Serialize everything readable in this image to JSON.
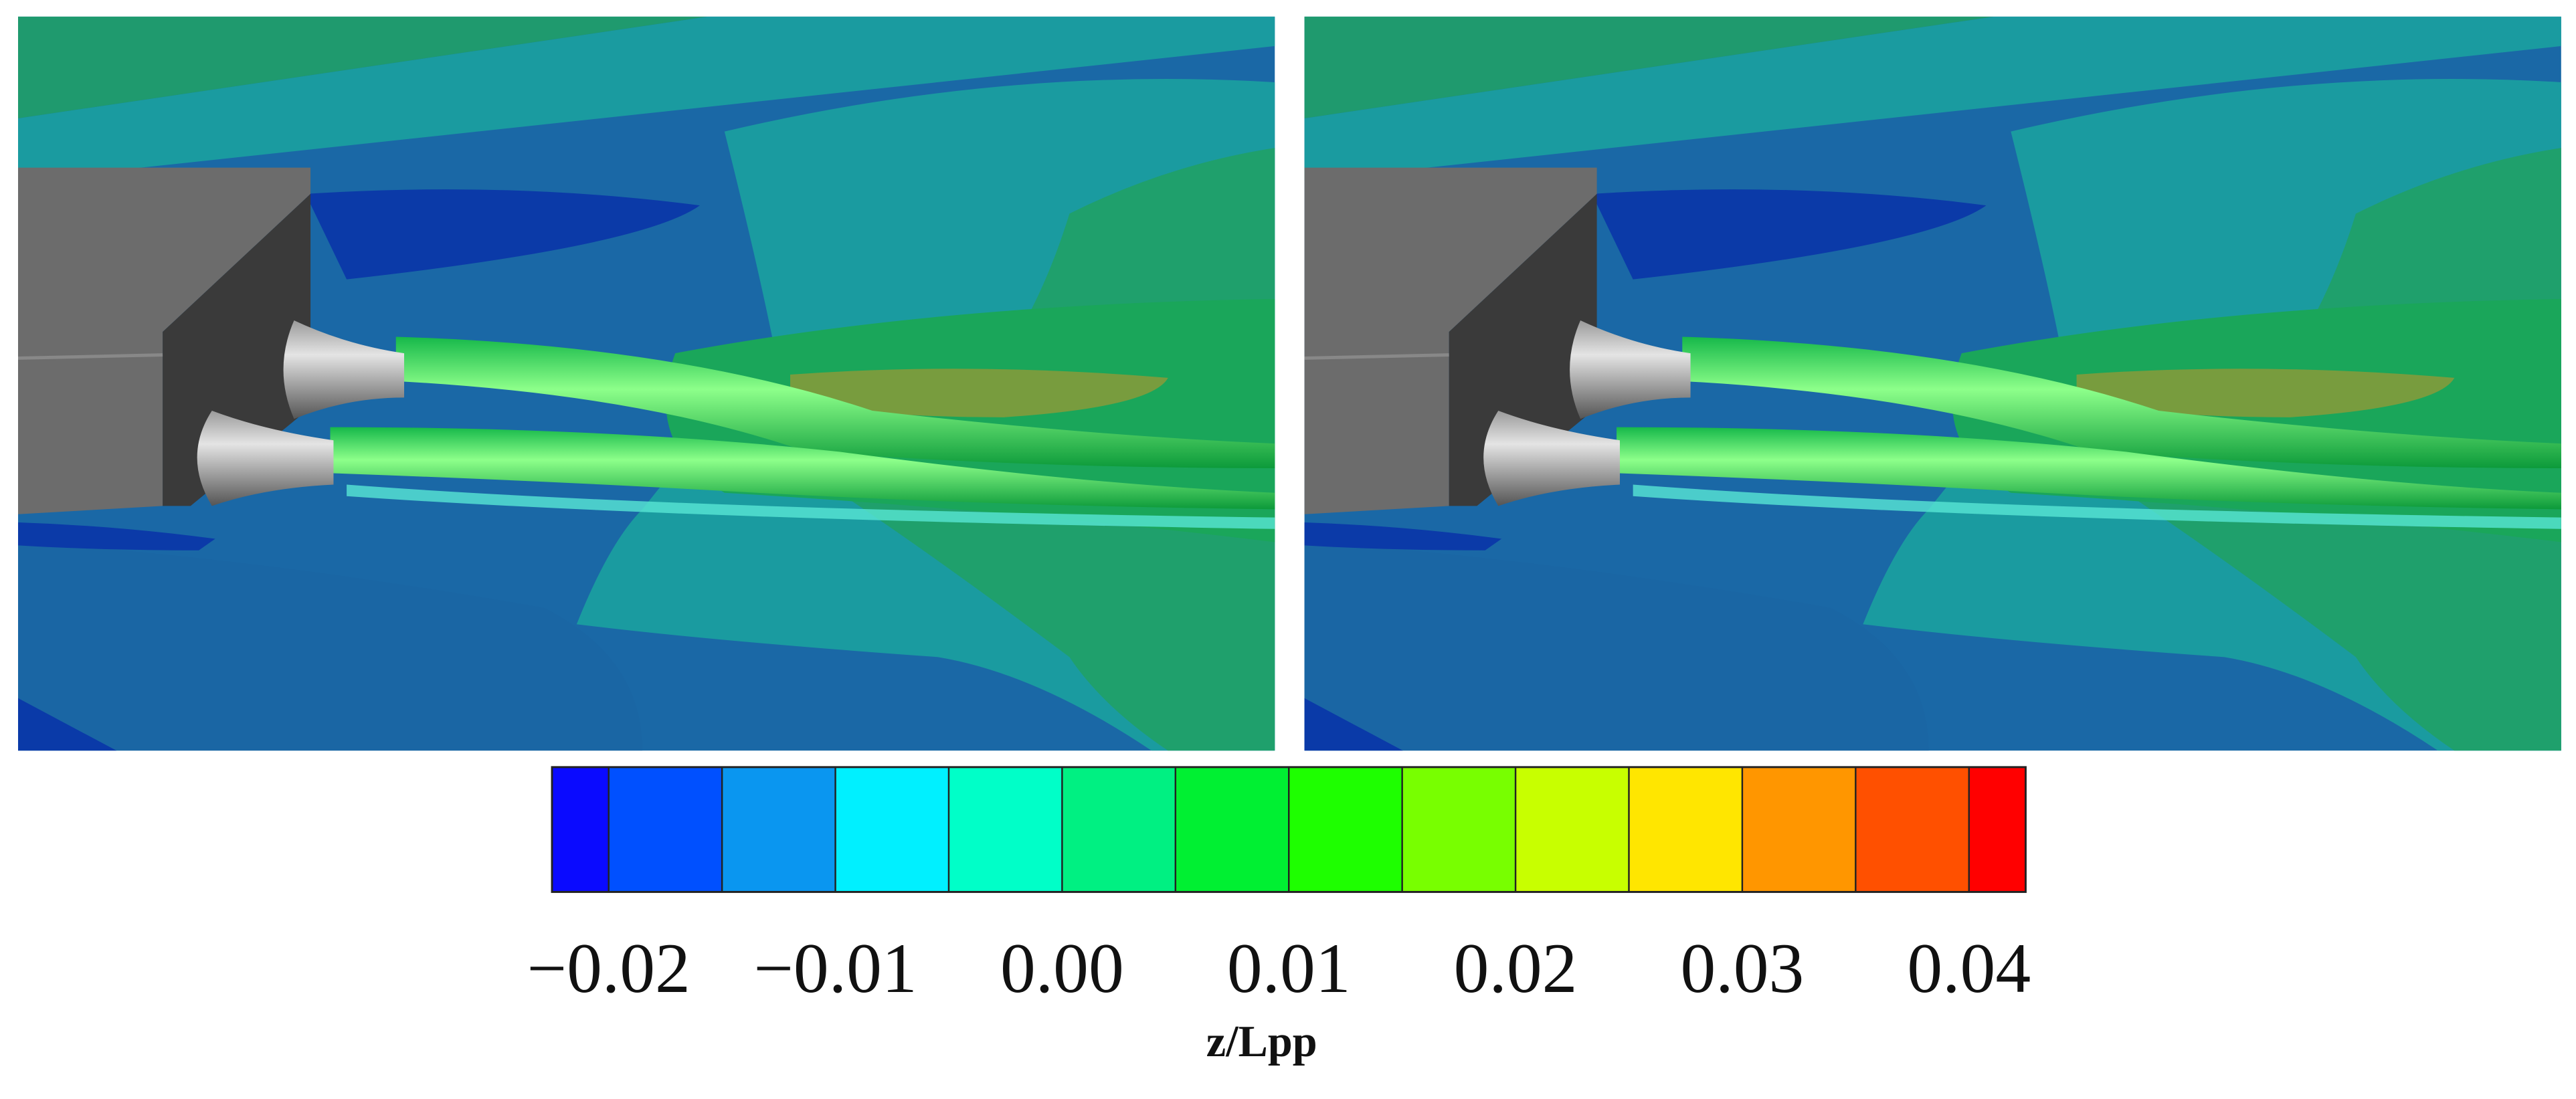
{
  "chart_data": {
    "type": "colorbar",
    "xlabel": "z/Lpp",
    "xlim": [
      -0.0225,
      0.0425
    ],
    "boundaries": [
      -0.02,
      -0.015,
      -0.01,
      -0.005,
      0,
      0.005,
      0.01,
      0.015,
      0.02,
      0.025,
      0.03,
      0.035,
      0.04
    ],
    "colors": [
      "#0a0aff",
      "#0050ff",
      "#0a96f0",
      "#00f0ff",
      "#00ffc8",
      "#00f082",
      "#00f032",
      "#1eff00",
      "#78ff00",
      "#c8ff00",
      "#ffe600",
      "#ff9600",
      "#ff5000",
      "#ff0000"
    ],
    "xticks": [
      {
        "value": -0.02,
        "label": "−0.02"
      },
      {
        "value": -0.01,
        "label": "−0.01"
      },
      {
        "value": 0,
        "label": "0.00"
      },
      0.01,
      0.02,
      0.03,
      0.04
    ]
  }
}
